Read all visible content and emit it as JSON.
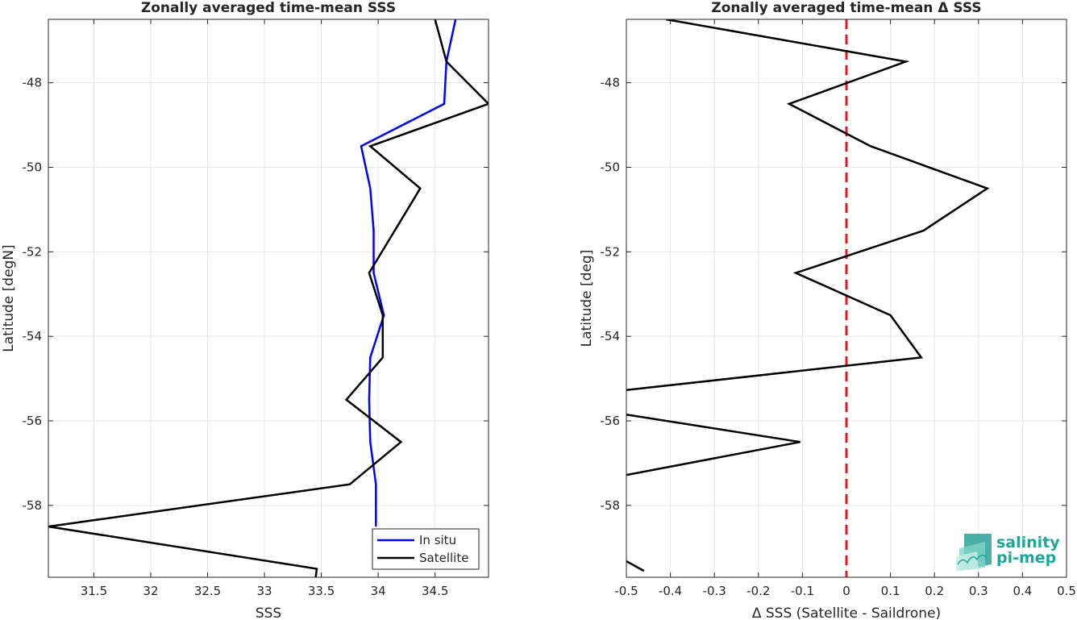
{
  "chart_data": [
    {
      "type": "line",
      "title": "Zonally averaged time-mean SSS",
      "xlabel": "SSS",
      "ylabel": "Latitude [degN]",
      "xlim": [
        31.1,
        34.97
      ],
      "ylim": [
        -59.7,
        -46.5
      ],
      "xticks": [
        "31.5",
        "32",
        "32.5",
        "33",
        "33.5",
        "34",
        "34.5"
      ],
      "yticks": [
        "-48",
        "-50",
        "-52",
        "-54",
        "-56",
        "-58"
      ],
      "grid": true,
      "legend": "bottom-right",
      "series": [
        {
          "name": "In situ",
          "color": "#0000ff",
          "x": [
            34.68,
            34.6,
            34.58,
            33.85,
            33.93,
            33.96,
            33.96,
            34.05,
            33.93,
            33.92,
            33.93,
            33.98,
            33.98
          ],
          "y": [
            -46.5,
            -47.5,
            -48.5,
            -49.5,
            -50.5,
            -51.5,
            -52.5,
            -53.5,
            -54.5,
            -55.5,
            -56.5,
            -57.5,
            -58.5
          ]
        },
        {
          "name": "Satellite",
          "color": "#000000",
          "x": [
            34.5,
            34.6,
            34.97,
            33.93,
            34.37,
            33.92,
            34.04,
            34.04,
            33.72,
            34.2,
            33.75,
            31.1,
            33.46,
            33.45
          ],
          "y": [
            -46.5,
            -47.5,
            -48.5,
            -49.5,
            -50.5,
            -52.5,
            -53.5,
            -54.5,
            -55.5,
            -56.5,
            -57.5,
            -58.5,
            -59.5,
            -59.7
          ]
        }
      ]
    },
    {
      "type": "line",
      "title": "Zonally averaged time-mean Δ SSS",
      "xlabel": "Δ SSS (Satellite - Saildrone)",
      "ylabel": "Latitude [deg]",
      "xlim": [
        -0.5,
        0.5
      ],
      "ylim": [
        -59.7,
        -46.5
      ],
      "xticks": [
        "-0.5",
        "-0.4",
        "-0.3",
        "-0.2",
        "-0.1",
        "0",
        "0.1",
        "0.2",
        "0.3",
        "0.4",
        "0.5"
      ],
      "yticks": [
        "-48",
        "-50",
        "-52",
        "-54",
        "-56",
        "-58"
      ],
      "grid": true,
      "zero_line_color": "#e41a1c",
      "series": [
        {
          "color": "#000000",
          "segments": [
            {
              "x": [
                -0.41,
                0.135,
                -0.13,
                0.055,
                0.32,
                0.175,
                -0.115,
                0.1,
                0.17,
                -0.5
              ],
              "y": [
                -46.5,
                -47.5,
                -48.5,
                -49.5,
                -50.5,
                -51.5,
                -52.5,
                -53.5,
                -54.5,
                -55.27
              ]
            },
            {
              "x": [
                -0.5,
                -0.105,
                -0.5
              ],
              "y": [
                -55.85,
                -56.5,
                -57.28
              ]
            },
            {
              "x": [
                -0.5,
                -0.46
              ],
              "y": [
                -59.32,
                -59.55
              ]
            }
          ]
        }
      ]
    }
  ],
  "logo": {
    "line1": "salinity",
    "line2": "pi-mep",
    "color": "#1fa69a"
  }
}
